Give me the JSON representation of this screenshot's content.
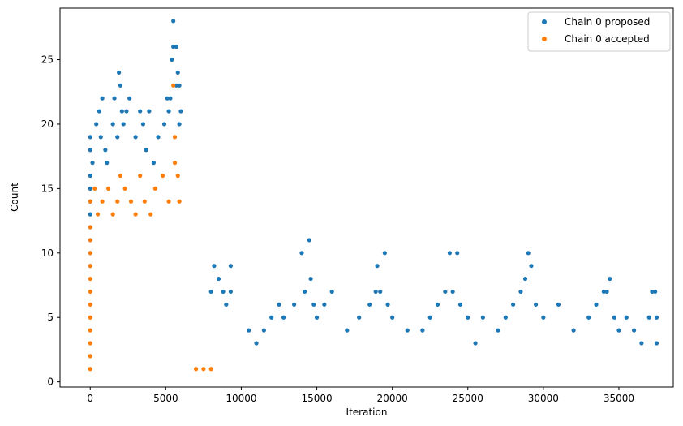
{
  "chart_data": {
    "type": "scatter",
    "xlabel": "Iteration",
    "ylabel": "Count",
    "xlim": [
      -2000,
      38600
    ],
    "ylim": [
      -0.4,
      29.0
    ],
    "xticks": [
      0,
      5000,
      10000,
      15000,
      20000,
      25000,
      30000,
      35000
    ],
    "yticks": [
      0,
      5,
      10,
      15,
      20,
      25
    ],
    "grid": false,
    "legend_position": "top-right",
    "colors": {
      "proposed": "#1f77b4",
      "accepted": "#ff7f0e"
    },
    "series": [
      {
        "name": "Chain 0 proposed",
        "role": "proposed",
        "color": "#1f77b4",
        "points": [
          [
            0,
            19
          ],
          [
            0,
            18
          ],
          [
            0,
            16
          ],
          [
            0,
            15
          ],
          [
            0,
            14
          ],
          [
            0,
            13
          ],
          [
            0,
            12
          ],
          [
            0,
            11
          ],
          [
            0,
            10
          ],
          [
            0,
            9
          ],
          [
            150,
            17
          ],
          [
            400,
            20
          ],
          [
            600,
            21
          ],
          [
            700,
            19
          ],
          [
            800,
            22
          ],
          [
            1000,
            18
          ],
          [
            1100,
            17
          ],
          [
            1500,
            20
          ],
          [
            1600,
            22
          ],
          [
            1800,
            19
          ],
          [
            1900,
            24
          ],
          [
            2000,
            23
          ],
          [
            2100,
            21
          ],
          [
            2200,
            20
          ],
          [
            2400,
            21
          ],
          [
            2600,
            22
          ],
          [
            3000,
            19
          ],
          [
            3300,
            21
          ],
          [
            3500,
            20
          ],
          [
            3700,
            18
          ],
          [
            3900,
            21
          ],
          [
            4200,
            17
          ],
          [
            4500,
            19
          ],
          [
            4900,
            20
          ],
          [
            5100,
            22
          ],
          [
            5200,
            21
          ],
          [
            5300,
            22
          ],
          [
            5400,
            25
          ],
          [
            5500,
            26
          ],
          [
            5500,
            28
          ],
          [
            5700,
            26
          ],
          [
            5700,
            23
          ],
          [
            5800,
            24
          ],
          [
            5900,
            23
          ],
          [
            5900,
            20
          ],
          [
            6000,
            21
          ],
          [
            8200,
            9
          ],
          [
            8000,
            7
          ],
          [
            8500,
            8
          ],
          [
            8800,
            7
          ],
          [
            9000,
            6
          ],
          [
            9300,
            9
          ],
          [
            9300,
            7
          ],
          [
            10500,
            4
          ],
          [
            11000,
            3
          ],
          [
            11500,
            4
          ],
          [
            12000,
            5
          ],
          [
            12500,
            6
          ],
          [
            12800,
            5
          ],
          [
            13500,
            6
          ],
          [
            14000,
            10
          ],
          [
            14200,
            7
          ],
          [
            14500,
            11
          ],
          [
            14600,
            8
          ],
          [
            14800,
            6
          ],
          [
            15000,
            5
          ],
          [
            15500,
            6
          ],
          [
            16000,
            7
          ],
          [
            17000,
            4
          ],
          [
            17800,
            5
          ],
          [
            18500,
            6
          ],
          [
            18900,
            7
          ],
          [
            19000,
            9
          ],
          [
            19200,
            7
          ],
          [
            19500,
            10
          ],
          [
            19700,
            6
          ],
          [
            20000,
            5
          ],
          [
            21000,
            4
          ],
          [
            22000,
            4
          ],
          [
            22500,
            5
          ],
          [
            23000,
            6
          ],
          [
            23500,
            7
          ],
          [
            23800,
            10
          ],
          [
            24000,
            7
          ],
          [
            24300,
            10
          ],
          [
            24500,
            6
          ],
          [
            25000,
            5
          ],
          [
            25500,
            3
          ],
          [
            26000,
            5
          ],
          [
            27000,
            4
          ],
          [
            27500,
            5
          ],
          [
            28000,
            6
          ],
          [
            28500,
            7
          ],
          [
            28800,
            8
          ],
          [
            29000,
            10
          ],
          [
            29200,
            9
          ],
          [
            29500,
            6
          ],
          [
            30000,
            5
          ],
          [
            31000,
            6
          ],
          [
            32000,
            4
          ],
          [
            33000,
            5
          ],
          [
            33500,
            6
          ],
          [
            34000,
            7
          ],
          [
            34200,
            7
          ],
          [
            34400,
            8
          ],
          [
            34700,
            5
          ],
          [
            35000,
            4
          ],
          [
            35500,
            5
          ],
          [
            36000,
            4
          ],
          [
            36500,
            3
          ],
          [
            37000,
            5
          ],
          [
            37200,
            7
          ],
          [
            37400,
            7
          ],
          [
            37500,
            5
          ],
          [
            37500,
            3
          ]
        ]
      },
      {
        "name": "Chain 0 accepted",
        "role": "accepted",
        "color": "#ff7f0e",
        "points": [
          [
            0,
            14
          ],
          [
            0,
            12
          ],
          [
            0,
            11
          ],
          [
            0,
            10
          ],
          [
            0,
            9
          ],
          [
            0,
            8
          ],
          [
            0,
            7
          ],
          [
            0,
            6
          ],
          [
            0,
            5
          ],
          [
            0,
            4
          ],
          [
            0,
            3
          ],
          [
            0,
            2
          ],
          [
            0,
            1
          ],
          [
            300,
            15
          ],
          [
            500,
            13
          ],
          [
            800,
            14
          ],
          [
            1200,
            15
          ],
          [
            1500,
            13
          ],
          [
            1800,
            14
          ],
          [
            2000,
            16
          ],
          [
            2300,
            15
          ],
          [
            2700,
            14
          ],
          [
            3000,
            13
          ],
          [
            3300,
            16
          ],
          [
            3600,
            14
          ],
          [
            4000,
            13
          ],
          [
            4300,
            15
          ],
          [
            4800,
            16
          ],
          [
            5200,
            14
          ],
          [
            5500,
            23
          ],
          [
            5600,
            17
          ],
          [
            5600,
            19
          ],
          [
            5800,
            16
          ],
          [
            5900,
            14
          ],
          [
            7000,
            1
          ],
          [
            7500,
            1
          ],
          [
            8000,
            1
          ]
        ]
      }
    ]
  }
}
